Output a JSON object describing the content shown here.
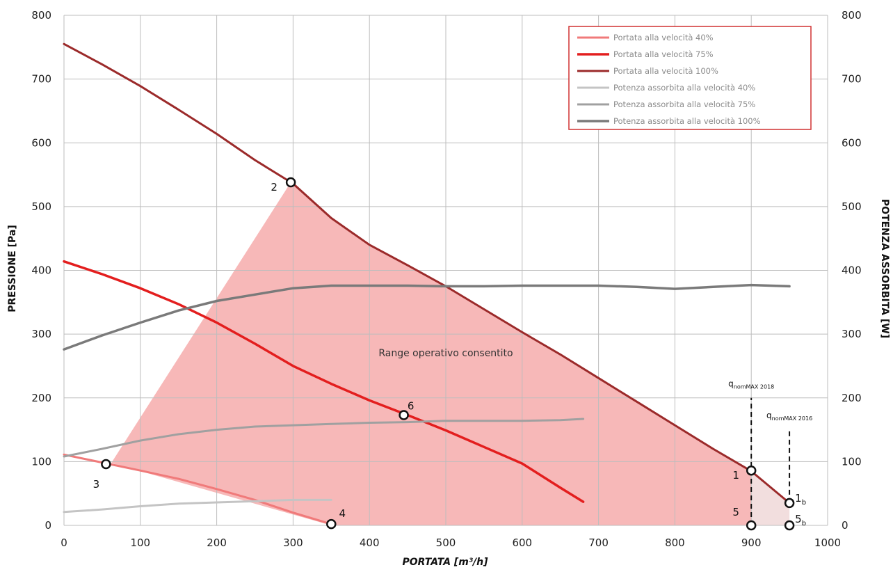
{
  "chart_data": {
    "type": "line",
    "title": "",
    "xlabel": "PORTATA [m³/h]",
    "ylabel": "PRESSIONE [Pa]",
    "y2label": "POTENZA ASSORBITA [W]",
    "xlim": [
      0,
      1000
    ],
    "ylim": [
      0,
      800
    ],
    "y2lim": [
      0,
      800
    ],
    "xticks": [
      "0",
      "100",
      "200",
      "300",
      "400",
      "500",
      "600",
      "700",
      "800",
      "900",
      "1000"
    ],
    "yticks": [
      "0",
      "100",
      "200",
      "300",
      "400",
      "500",
      "600",
      "700",
      "800"
    ],
    "y2ticks": [
      "0",
      "100",
      "200",
      "300",
      "400",
      "500",
      "600",
      "700",
      "800"
    ],
    "grid": true,
    "legend_position": "top-right",
    "colors": {
      "grid": "#bdbdbd",
      "region": "#f7b8b8",
      "region_extension": "#f2dede",
      "legend_border": "#d03030"
    },
    "series": [
      {
        "name": "Portata alla velocità 40%",
        "axis": "left",
        "color": "#f07a7a",
        "width": 3,
        "x": [
          0,
          60,
          100,
          150,
          200,
          250,
          300,
          350
        ],
        "y": [
          111,
          96,
          86,
          73,
          57,
          40,
          20,
          2
        ]
      },
      {
        "name": "Portata alla velocità 75%",
        "axis": "left",
        "color": "#e31e1e",
        "width": 3.5,
        "x": [
          0,
          50,
          100,
          150,
          200,
          250,
          300,
          350,
          400,
          450,
          500,
          550,
          600,
          650,
          680
        ],
        "y": [
          414,
          394,
          372,
          347,
          318,
          285,
          250,
          222,
          196,
          173,
          149,
          123,
          97,
          59,
          37
        ]
      },
      {
        "name": "Portata alla velocità 100%",
        "axis": "left",
        "color": "#9b2a2a",
        "width": 3,
        "x": [
          0,
          50,
          100,
          150,
          200,
          250,
          300,
          350,
          400,
          450,
          500,
          550,
          600,
          650,
          700,
          750,
          800,
          850,
          900,
          950
        ],
        "y": [
          755,
          723,
          689,
          652,
          614,
          573,
          536,
          482,
          440,
          408,
          375,
          339,
          303,
          268,
          231,
          194,
          157,
          120,
          85,
          35
        ]
      },
      {
        "name": "Potenza assorbita alla velocità 40%",
        "axis": "right",
        "color": "#c4c4c4",
        "width": 3,
        "x": [
          0,
          50,
          100,
          150,
          200,
          250,
          300,
          350
        ],
        "y": [
          21,
          25,
          30,
          34,
          36,
          38,
          40,
          40
        ]
      },
      {
        "name": "Potenza assorbita alla velocità 75%",
        "axis": "right",
        "color": "#a0a0a0",
        "width": 3,
        "x": [
          0,
          50,
          100,
          150,
          200,
          250,
          300,
          350,
          400,
          450,
          500,
          550,
          600,
          650,
          680
        ],
        "y": [
          108,
          120,
          133,
          143,
          150,
          155,
          157,
          159,
          161,
          162,
          164,
          164,
          164,
          165,
          167
        ]
      },
      {
        "name": "Potenza assorbita alla velocità 100%",
        "axis": "right",
        "color": "#7a7a7a",
        "width": 3.5,
        "x": [
          0,
          50,
          100,
          150,
          200,
          250,
          300,
          350,
          400,
          450,
          500,
          550,
          600,
          650,
          700,
          750,
          800,
          850,
          900,
          950
        ],
        "y": [
          276,
          298,
          318,
          337,
          352,
          362,
          372,
          376,
          376,
          376,
          375,
          375,
          376,
          376,
          376,
          374,
          371,
          374,
          377,
          375
        ]
      }
    ],
    "points": [
      {
        "label": "1",
        "x": 900,
        "y": 86
      },
      {
        "label": "2",
        "x": 297,
        "y": 538
      },
      {
        "label": "3",
        "x": 55,
        "y": 96
      },
      {
        "label": "4",
        "x": 350,
        "y": 2
      },
      {
        "label": "5",
        "x": 900,
        "y": 0
      },
      {
        "label": "6",
        "x": 445,
        "y": 173
      },
      {
        "label": "1",
        "label_sub": "b",
        "x": 950,
        "y": 35
      },
      {
        "label": "5",
        "label_sub": "b",
        "x": 950,
        "y": 0
      }
    ],
    "operating_region": {
      "label": "Range operativo consentito",
      "label_at": {
        "x": 500,
        "y": 265
      },
      "polygon": [
        [
          62,
          98
        ],
        [
          297,
          538
        ],
        [
          350,
          482
        ],
        [
          400,
          440
        ],
        [
          450,
          408
        ],
        [
          500,
          375
        ],
        [
          550,
          339
        ],
        [
          600,
          303
        ],
        [
          650,
          268
        ],
        [
          700,
          231
        ],
        [
          750,
          194
        ],
        [
          800,
          157
        ],
        [
          850,
          120
        ],
        [
          900,
          86
        ],
        [
          900,
          0
        ],
        [
          350,
          0
        ]
      ]
    },
    "extension_region": {
      "polygon": [
        [
          900,
          86
        ],
        [
          950,
          35
        ],
        [
          950,
          0
        ],
        [
          900,
          0
        ]
      ]
    },
    "reference_lines": [
      {
        "x": 900,
        "y_from": 0,
        "y_to": 200,
        "label": "q",
        "label_sub": "nomMAX 2018",
        "label_at": {
          "x": 900,
          "y": 218
        }
      },
      {
        "x": 950,
        "y_from": 35,
        "y_to": 150,
        "label": "q",
        "label_sub": "nomMAX 2016",
        "label_at": {
          "x": 950,
          "y": 168
        }
      }
    ]
  }
}
